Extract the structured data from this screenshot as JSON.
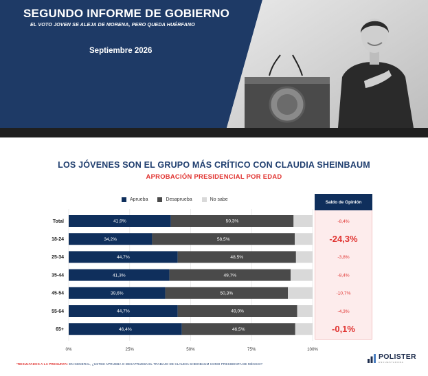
{
  "banner": {
    "title": "SEGUNDO INFORME DE GOBIERNO",
    "subtitle": "EL VOTO JOVEN SE ALEJA DE MORENA, PERO QUEDA HUÉRFANO",
    "date": "Septiembre 2026"
  },
  "colors": {
    "navy": "#0f2f5c",
    "banner_blue": "#1e3a66",
    "aprueba": "#0f2f5c",
    "desaprueba": "#4a4a4a",
    "no_sabe": "#d9d9d9",
    "title_blue": "#1e3d6e",
    "red": "#e0322f"
  },
  "saldo_header": "Saldo de Opinión",
  "footnote": {
    "star": "*RESULTADOS A LA PREGUNTA:",
    "text": " EN GENERAL, ¿USTED APRUEBA O DESAPRUEBA EL TRABAJO DE CLAUDIA SHEINBAUM COMO PRESIDENTA DE MÉXICO?"
  },
  "logo": {
    "name": "POLISTER",
    "tagline": "ENCUESTADORA"
  },
  "chart_data": {
    "type": "bar",
    "orientation": "horizontal",
    "stacked": true,
    "title": "LOS JÓVENES SON EL GRUPO MÁS CRÍTICO CON CLAUDIA SHEINBAUM",
    "subtitle": "APROBACIÓN PRESIDENCIAL POR EDAD",
    "categories": [
      "Total",
      "18-24",
      "25-34",
      "35-44",
      "45-54",
      "55-64",
      "65+"
    ],
    "series": [
      {
        "name": "Aprueba",
        "values": [
          41.9,
          34.2,
          44.7,
          41.3,
          39.6,
          44.7,
          46.4
        ],
        "labels": [
          "41,9%",
          "34,2%",
          "44,7%",
          "41,3%",
          "39,6%",
          "44,7%",
          "46,4%"
        ]
      },
      {
        "name": "Desaprueba",
        "values": [
          50.3,
          58.5,
          48.5,
          49.7,
          50.3,
          49.0,
          46.5
        ],
        "labels": [
          "50,3%",
          "58,5%",
          "48,5%",
          "49,7%",
          "50,3%",
          "49,0%",
          "46,5%"
        ]
      },
      {
        "name": "No sabe",
        "values": [
          7.8,
          7.3,
          6.8,
          9.0,
          10.1,
          6.3,
          7.1
        ]
      }
    ],
    "saldo": {
      "values": [
        -8.4,
        -24.3,
        -3.8,
        -8.4,
        -10.7,
        -4.3,
        -0.1
      ],
      "labels": [
        "-8,4%",
        "-24,3%",
        "-3,8%",
        "-8,4%",
        "-10,7%",
        "-4,3%",
        "-0,1%"
      ],
      "emphasized": [
        false,
        true,
        false,
        false,
        false,
        false,
        true
      ]
    },
    "x_ticks": [
      "0%",
      "25%",
      "50%",
      "75%",
      "100%"
    ],
    "xlim": [
      0,
      100
    ],
    "legend_position": "top"
  }
}
